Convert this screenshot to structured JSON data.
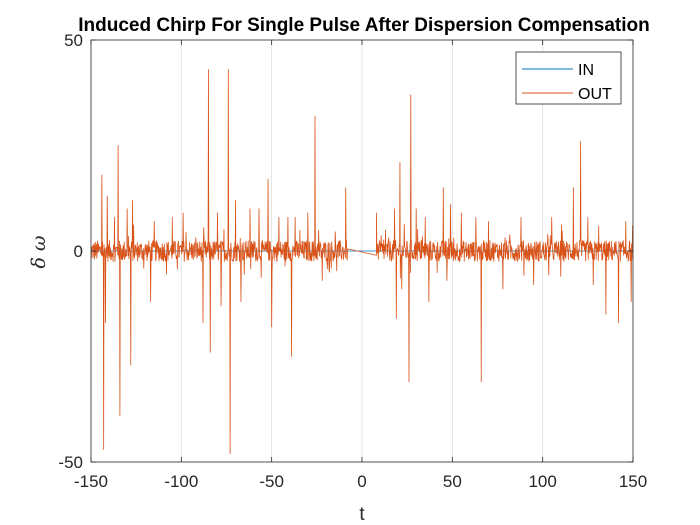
{
  "chart_data": {
    "type": "line",
    "title": "Induced Chirp For Single Pulse After Dispersion Compensation",
    "xlabel": "t",
    "ylabel": "δ ω",
    "xlim": [
      -150,
      150
    ],
    "ylim": [
      -50,
      50
    ],
    "xticks": [
      "-150",
      "-100",
      "-50",
      "0",
      "50",
      "100",
      "150"
    ],
    "yticks": [
      "-50",
      "0",
      "50"
    ],
    "grid": "vertical",
    "legend_position": "top-right",
    "series": [
      {
        "name": "IN",
        "color": "#0072BD",
        "points": [
          [
            -150,
            0
          ],
          [
            150,
            0
          ]
        ]
      },
      {
        "name": "OUT",
        "color": "#D95319",
        "noise_regions": [
          [
            -150,
            -8
          ],
          [
            8,
            150
          ]
        ],
        "noise_amplitude": 2.5,
        "gap_segment": [
          [
            -8,
            0.5
          ],
          [
            8,
            -1
          ]
        ],
        "spikes": [
          [
            -144,
            18
          ],
          [
            -143,
            -47
          ],
          [
            -142,
            -17
          ],
          [
            -141,
            13
          ],
          [
            -137,
            8
          ],
          [
            -135,
            25
          ],
          [
            -134,
            -39
          ],
          [
            -130,
            10
          ],
          [
            -128,
            -27
          ],
          [
            -127,
            12
          ],
          [
            -117,
            -12
          ],
          [
            -115,
            7
          ],
          [
            -105,
            8
          ],
          [
            -99,
            9
          ],
          [
            -88,
            -17
          ],
          [
            -85,
            43
          ],
          [
            -84,
            -24
          ],
          [
            -80,
            9
          ],
          [
            -78,
            -13
          ],
          [
            -74,
            43
          ],
          [
            -73,
            -48
          ],
          [
            -70,
            12
          ],
          [
            -67,
            -12
          ],
          [
            -62,
            10
          ],
          [
            -57,
            10
          ],
          [
            -52,
            17
          ],
          [
            -50,
            -18
          ],
          [
            -46,
            8
          ],
          [
            -41,
            8
          ],
          [
            -39,
            -25
          ],
          [
            -37,
            8
          ],
          [
            -30,
            9
          ],
          [
            -26,
            32
          ],
          [
            -22,
            -7
          ],
          [
            -18,
            -5
          ],
          [
            -9,
            15
          ],
          [
            8,
            9
          ],
          [
            13,
            5
          ],
          [
            18,
            10
          ],
          [
            19,
            -16
          ],
          [
            21,
            21
          ],
          [
            22,
            -9
          ],
          [
            26,
            -31
          ],
          [
            27,
            37
          ],
          [
            30,
            10
          ],
          [
            35,
            8
          ],
          [
            37,
            -12
          ],
          [
            45,
            15
          ],
          [
            47,
            -7
          ],
          [
            49,
            11
          ],
          [
            55,
            9
          ],
          [
            63,
            8
          ],
          [
            66,
            -31
          ],
          [
            70,
            7
          ],
          [
            78,
            -9
          ],
          [
            88,
            8
          ],
          [
            95,
            -8
          ],
          [
            105,
            8
          ],
          [
            110,
            -6
          ],
          [
            117,
            15
          ],
          [
            121,
            26
          ],
          [
            125,
            8
          ],
          [
            128,
            -8
          ],
          [
            131,
            6
          ],
          [
            135,
            -15
          ],
          [
            142,
            -17
          ],
          [
            146,
            7
          ],
          [
            149,
            -12
          ]
        ]
      }
    ]
  }
}
